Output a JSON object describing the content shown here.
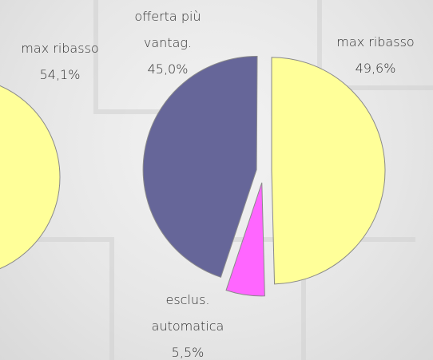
{
  "chart_data": [
    {
      "type": "pie",
      "categories": [
        "max ribasso"
      ],
      "values": [
        54.1
      ],
      "value_labels": [
        "54,1%"
      ],
      "colors": [
        "#ffff99"
      ]
    },
    {
      "type": "pie",
      "categories": [
        "max ribasso",
        "esclus. automatica",
        "offerta più vantag."
      ],
      "values": [
        49.6,
        5.5,
        45.0
      ],
      "value_labels": [
        "49,6%",
        "5,5%",
        "45,0%"
      ],
      "colors": [
        "#ffff99",
        "#ff66ff",
        "#666699"
      ]
    }
  ]
}
